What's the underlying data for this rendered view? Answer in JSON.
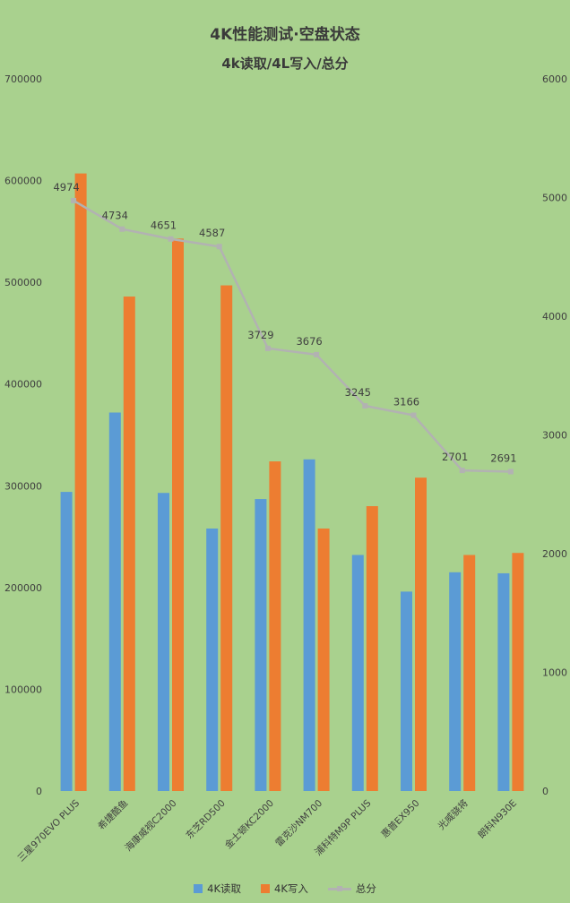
{
  "chart_data": {
    "type": "bar+line",
    "title": "4K性能测试·空盘状态",
    "subtitle": "4k读取/4L写入/总分",
    "categories": [
      "三星970EVO PLUS",
      "希捷酷鱼",
      "海康威视C2000",
      "东芝RD500",
      "金士顿KC2000",
      "雷克沙NM700",
      "浦科特M9P PLUS",
      "惠普EX950",
      "光威骁将",
      "朗科N930E"
    ],
    "series": [
      {
        "name": "4K读取",
        "type": "bar",
        "axis": "left",
        "color": "#5b9bd5",
        "values": [
          294000,
          372000,
          293000,
          258000,
          287000,
          326000,
          232000,
          196000,
          215000,
          214000
        ]
      },
      {
        "name": "4K写入",
        "type": "bar",
        "axis": "left",
        "color": "#ed7d31",
        "values": [
          607000,
          486000,
          543000,
          497000,
          324000,
          258000,
          280000,
          308000,
          232000,
          234000
        ]
      },
      {
        "name": "总分",
        "type": "line",
        "axis": "right",
        "color": "#b2b2b2",
        "data_labels": true,
        "values": [
          4974,
          4734,
          4651,
          4587,
          3729,
          3676,
          3245,
          3166,
          2701,
          2691
        ]
      }
    ],
    "left_axis": {
      "min": 0,
      "max": 700000,
      "step": 100000,
      "ticks": [
        "0",
        "100000",
        "200000",
        "300000",
        "400000",
        "500000",
        "600000",
        "700000"
      ]
    },
    "right_axis": {
      "min": 0,
      "max": 6000,
      "step": 1000,
      "ticks": [
        "0",
        "1000",
        "2000",
        "3000",
        "4000",
        "5000",
        "6000"
      ]
    },
    "legend_position": "bottom",
    "grid": false,
    "colors": {
      "background": "#a9d18e",
      "text": "#3a3a3a",
      "axis_text": "#404040",
      "data_label": "#404040"
    }
  }
}
